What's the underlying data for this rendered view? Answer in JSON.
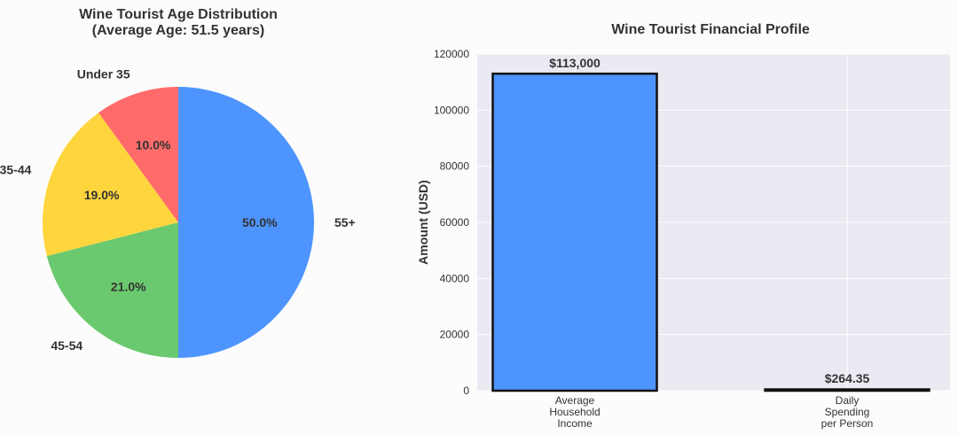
{
  "chart_data": [
    {
      "type": "pie",
      "title": "Wine Tourist Age Distribution",
      "subtitle": "(Average Age: 51.5 years)",
      "slices": [
        {
          "label": "55+",
          "value": 50.0,
          "pct_label": "50.0%",
          "color": "#4d94ff"
        },
        {
          "label": "45-54",
          "value": 21.0,
          "pct_label": "21.0%",
          "color": "#6ac96e"
        },
        {
          "label": "35-44",
          "value": 19.0,
          "pct_label": "19.0%",
          "color": "#ffd53d"
        },
        {
          "label": "Under 35",
          "value": 10.0,
          "pct_label": "10.0%",
          "color": "#ff6b6b"
        }
      ],
      "start_angle_deg": 90,
      "direction": "clockwise"
    },
    {
      "type": "bar",
      "title": "Wine Tourist Financial Profile",
      "xlabel": "",
      "ylabel": "Amount (USD)",
      "categories": [
        [
          "Average",
          "Household",
          "Income"
        ],
        [
          "Daily",
          "Spending",
          "per Person"
        ]
      ],
      "values": [
        113000,
        264.35
      ],
      "value_labels": [
        "$113,000",
        "$264.35"
      ],
      "bar_color": "#4d94ff",
      "ylim": [
        0,
        120000
      ],
      "yticks": [
        0,
        20000,
        40000,
        60000,
        80000,
        100000,
        120000
      ],
      "grid": true,
      "background": "#eaeaf2"
    }
  ]
}
